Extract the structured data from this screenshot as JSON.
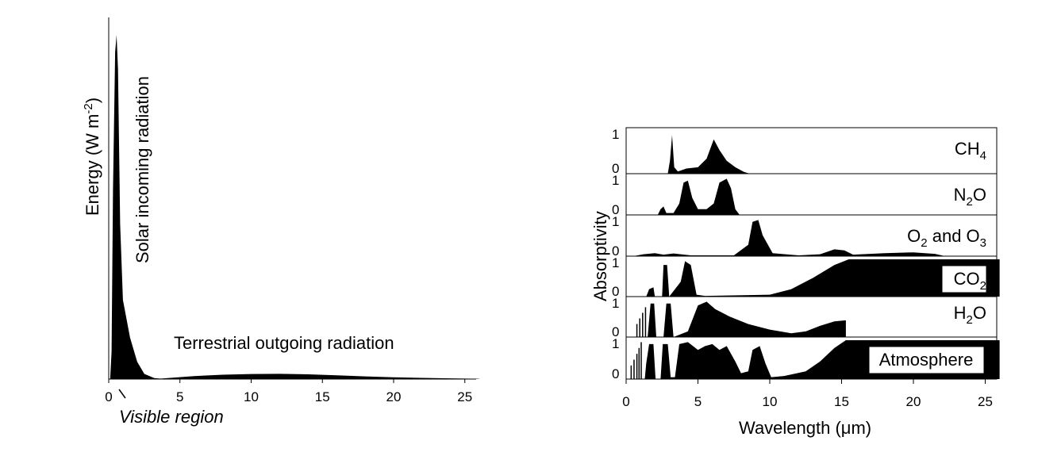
{
  "chart_data": [
    {
      "type": "area",
      "ylabel": "Energy (W m-2)",
      "ylabel_parts": {
        "main": "Energy (W m",
        "sup": "-2",
        "close": ")"
      },
      "x_ticks": [
        0,
        5,
        10,
        15,
        20,
        25
      ],
      "xlim": [
        0,
        26
      ],
      "ylim": [
        0,
        1
      ],
      "y_ticks_shown": false,
      "annotations": [
        "Solar incoming radiation",
        "Terrestrial outgoing radiation",
        "Visible region"
      ],
      "series": [
        {
          "name": "Solar incoming radiation",
          "color": "#000000",
          "points": [
            [
              0.1,
              0
            ],
            [
              0.2,
              0.08
            ],
            [
              0.3,
              0.55
            ],
            [
              0.45,
              0.95
            ],
            [
              0.55,
              1.0
            ],
            [
              0.65,
              0.9
            ],
            [
              0.8,
              0.45
            ],
            [
              1.0,
              0.23
            ],
            [
              1.5,
              0.12
            ],
            [
              2.0,
              0.05
            ],
            [
              2.5,
              0.015
            ],
            [
              3.2,
              0.003
            ],
            [
              4.0,
              0
            ]
          ]
        },
        {
          "name": "Terrestrial outgoing radiation",
          "color": "#000000",
          "points": [
            [
              3.2,
              0
            ],
            [
              4.5,
              0.008
            ],
            [
              6,
              0.018
            ],
            [
              8,
              0.026
            ],
            [
              10,
              0.03
            ],
            [
              12,
              0.031
            ],
            [
              14,
              0.028
            ],
            [
              16,
              0.022
            ],
            [
              18,
              0.016
            ],
            [
              20,
              0.011
            ],
            [
              22,
              0.007
            ],
            [
              24,
              0.004
            ],
            [
              26,
              0.002
            ]
          ]
        }
      ]
    },
    {
      "type": "area",
      "xlabel": "Wavelength (μm)",
      "ylabel": "Absorptivity",
      "x_ticks": [
        0,
        5,
        10,
        15,
        20,
        25
      ],
      "xlim": [
        0,
        26
      ],
      "panel_ylim": [
        0,
        1
      ],
      "panel_y_ticks": [
        0,
        1
      ],
      "panels": [
        {
          "label": "CH4",
          "label_parts": {
            "main": "CH",
            "sub": "4",
            "rest": ""
          },
          "points": [
            [
              2.9,
              0
            ],
            [
              3.05,
              0.3
            ],
            [
              3.2,
              0.9
            ],
            [
              3.35,
              0.15
            ],
            [
              3.6,
              0.05
            ],
            [
              4.2,
              0.12
            ],
            [
              5.0,
              0.15
            ],
            [
              5.6,
              0.35
            ],
            [
              6.1,
              0.8
            ],
            [
              6.5,
              0.55
            ],
            [
              7.0,
              0.3
            ],
            [
              7.6,
              0.15
            ],
            [
              8.2,
              0.04
            ],
            [
              8.6,
              0
            ]
          ]
        },
        {
          "label": "N2O",
          "label_parts": {
            "main": "N",
            "sub": "2",
            "rest": "O"
          },
          "points": [
            [
              2.2,
              0
            ],
            [
              2.4,
              0.15
            ],
            [
              2.6,
              0.22
            ],
            [
              2.8,
              0.05
            ],
            [
              3.3,
              0.05
            ],
            [
              3.7,
              0.3
            ],
            [
              4.0,
              0.85
            ],
            [
              4.3,
              0.9
            ],
            [
              4.6,
              0.45
            ],
            [
              5.0,
              0.15
            ],
            [
              5.6,
              0.15
            ],
            [
              6.1,
              0.3
            ],
            [
              6.5,
              0.85
            ],
            [
              7.0,
              0.95
            ],
            [
              7.3,
              0.7
            ],
            [
              7.6,
              0.15
            ],
            [
              7.9,
              0
            ]
          ]
        },
        {
          "label": "O2 and O3",
          "label_parts": {
            "main": "O",
            "sub": "2",
            "rest": " and O",
            "sub2": "3"
          },
          "points": [
            [
              0.5,
              0
            ],
            [
              1.2,
              0.05
            ],
            [
              2,
              0.08
            ],
            [
              2.6,
              0.04
            ],
            [
              3.3,
              0.07
            ],
            [
              4.5,
              0.02
            ],
            [
              7.5,
              0.02
            ],
            [
              8.5,
              0.3
            ],
            [
              8.8,
              0.9
            ],
            [
              9.2,
              0.95
            ],
            [
              9.5,
              0.55
            ],
            [
              10.2,
              0.08
            ],
            [
              12,
              0.02
            ],
            [
              13.5,
              0.05
            ],
            [
              14.5,
              0.18
            ],
            [
              15.2,
              0.15
            ],
            [
              15.8,
              0.04
            ],
            [
              18,
              0.08
            ],
            [
              20,
              0.1
            ],
            [
              21.5,
              0.06
            ],
            [
              22.2,
              0
            ]
          ]
        },
        {
          "label": "CO2",
          "label_parts": {
            "main": "CO",
            "sub": "2",
            "rest": ""
          },
          "points": [
            [
              1.4,
              0
            ],
            [
              1.6,
              0.2
            ],
            [
              1.9,
              0.25
            ],
            [
              2.0,
              0
            ],
            [
              2.5,
              0
            ],
            [
              2.6,
              0.85
            ],
            [
              2.85,
              0.85
            ],
            [
              3.0,
              0
            ],
            [
              3.8,
              0.4
            ],
            [
              4.1,
              0.95
            ],
            [
              4.5,
              0.85
            ],
            [
              4.9,
              0.05
            ],
            [
              5.5,
              0.02
            ],
            [
              10,
              0.05
            ],
            [
              11.5,
              0.2
            ],
            [
              13,
              0.5
            ],
            [
              14.5,
              0.85
            ],
            [
              15.5,
              1
            ],
            [
              26,
              1
            ],
            [
              26,
              0
            ]
          ]
        },
        {
          "label": "H2O",
          "label_parts": {
            "main": "H",
            "sub": "2",
            "rest": "O"
          },
          "lines": [
            0.75,
            0.95,
            1.15,
            1.35
          ],
          "points": [
            [
              1.5,
              0
            ],
            [
              1.7,
              0.9
            ],
            [
              1.95,
              0.9
            ],
            [
              2.1,
              0
            ],
            [
              2.6,
              0
            ],
            [
              2.8,
              0.9
            ],
            [
              3.1,
              0.9
            ],
            [
              3.3,
              0
            ],
            [
              4.3,
              0.15
            ],
            [
              5.0,
              0.85
            ],
            [
              5.6,
              0.95
            ],
            [
              6.2,
              0.75
            ],
            [
              7.2,
              0.55
            ],
            [
              8.5,
              0.35
            ],
            [
              10,
              0.2
            ],
            [
              11.5,
              0.1
            ],
            [
              12.5,
              0.15
            ],
            [
              13.5,
              0.3
            ],
            [
              14.5,
              0.42
            ],
            [
              15.3,
              0.45
            ],
            [
              15.3,
              0
            ]
          ]
        },
        {
          "label": "Atmosphere",
          "lines": [
            0.35,
            0.55,
            0.75,
            0.9,
            1.05
          ],
          "points": [
            [
              1.3,
              0
            ],
            [
              1.4,
              0.4
            ],
            [
              1.6,
              0.9
            ],
            [
              1.9,
              0.9
            ],
            [
              2.05,
              0
            ],
            [
              2.4,
              0
            ],
            [
              2.55,
              0.9
            ],
            [
              2.9,
              0.9
            ],
            [
              3.1,
              0.05
            ],
            [
              3.4,
              0.05
            ],
            [
              3.7,
              0.9
            ],
            [
              4.3,
              0.95
            ],
            [
              5.0,
              0.75
            ],
            [
              5.5,
              0.85
            ],
            [
              6.0,
              0.9
            ],
            [
              6.5,
              0.75
            ],
            [
              7.0,
              0.85
            ],
            [
              7.6,
              0.45
            ],
            [
              8.0,
              0.15
            ],
            [
              8.5,
              0.2
            ],
            [
              8.8,
              0.75
            ],
            [
              9.3,
              0.85
            ],
            [
              9.7,
              0.4
            ],
            [
              10.1,
              0.05
            ],
            [
              11,
              0.08
            ],
            [
              12.5,
              0.2
            ],
            [
              13.5,
              0.45
            ],
            [
              14.5,
              0.8
            ],
            [
              15.3,
              1
            ],
            [
              26,
              1
            ],
            [
              26,
              0
            ]
          ]
        }
      ]
    }
  ]
}
